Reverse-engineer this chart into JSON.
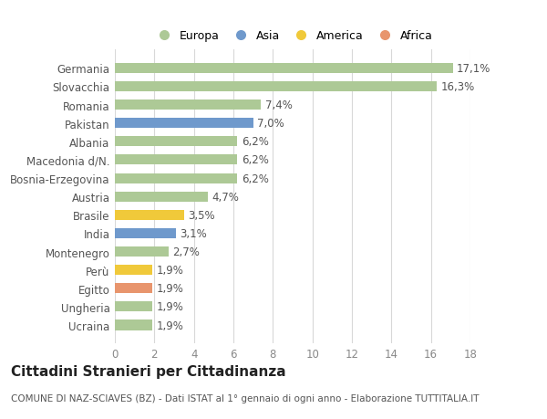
{
  "categories": [
    "Germania",
    "Slovacchia",
    "Romania",
    "Pakistan",
    "Albania",
    "Macedonia d/N.",
    "Bosnia-Erzegovina",
    "Austria",
    "Brasile",
    "India",
    "Montenegro",
    "Perù",
    "Egitto",
    "Ungheria",
    "Ucraina"
  ],
  "values": [
    17.1,
    16.3,
    7.4,
    7.0,
    6.2,
    6.2,
    6.2,
    4.7,
    3.5,
    3.1,
    2.7,
    1.9,
    1.9,
    1.9,
    1.9
  ],
  "labels": [
    "17,1%",
    "16,3%",
    "7,4%",
    "7,0%",
    "6,2%",
    "6,2%",
    "6,2%",
    "4,7%",
    "3,5%",
    "3,1%",
    "2,7%",
    "1,9%",
    "1,9%",
    "1,9%",
    "1,9%"
  ],
  "continents": [
    "Europa",
    "Europa",
    "Europa",
    "Asia",
    "Europa",
    "Europa",
    "Europa",
    "Europa",
    "America",
    "Asia",
    "Europa",
    "America",
    "Africa",
    "Europa",
    "Europa"
  ],
  "continent_colors": {
    "Europa": "#adc996",
    "Asia": "#6f99cc",
    "America": "#f0c93a",
    "Africa": "#e8956d"
  },
  "legend_order": [
    "Europa",
    "Asia",
    "America",
    "Africa"
  ],
  "xlim": [
    0,
    18
  ],
  "xticks": [
    0,
    2,
    4,
    6,
    8,
    10,
    12,
    14,
    16,
    18
  ],
  "title": "Cittadini Stranieri per Cittadinanza",
  "subtitle": "COMUNE DI NAZ-SCIAVES (BZ) - Dati ISTAT al 1° gennaio di ogni anno - Elaborazione TUTTITALIA.IT",
  "bg_color": "#ffffff",
  "grid_color": "#d8d8d8",
  "bar_height": 0.55,
  "label_fontsize": 8.5,
  "ytick_fontsize": 8.5,
  "xtick_fontsize": 8.5,
  "title_fontsize": 11,
  "subtitle_fontsize": 7.5
}
